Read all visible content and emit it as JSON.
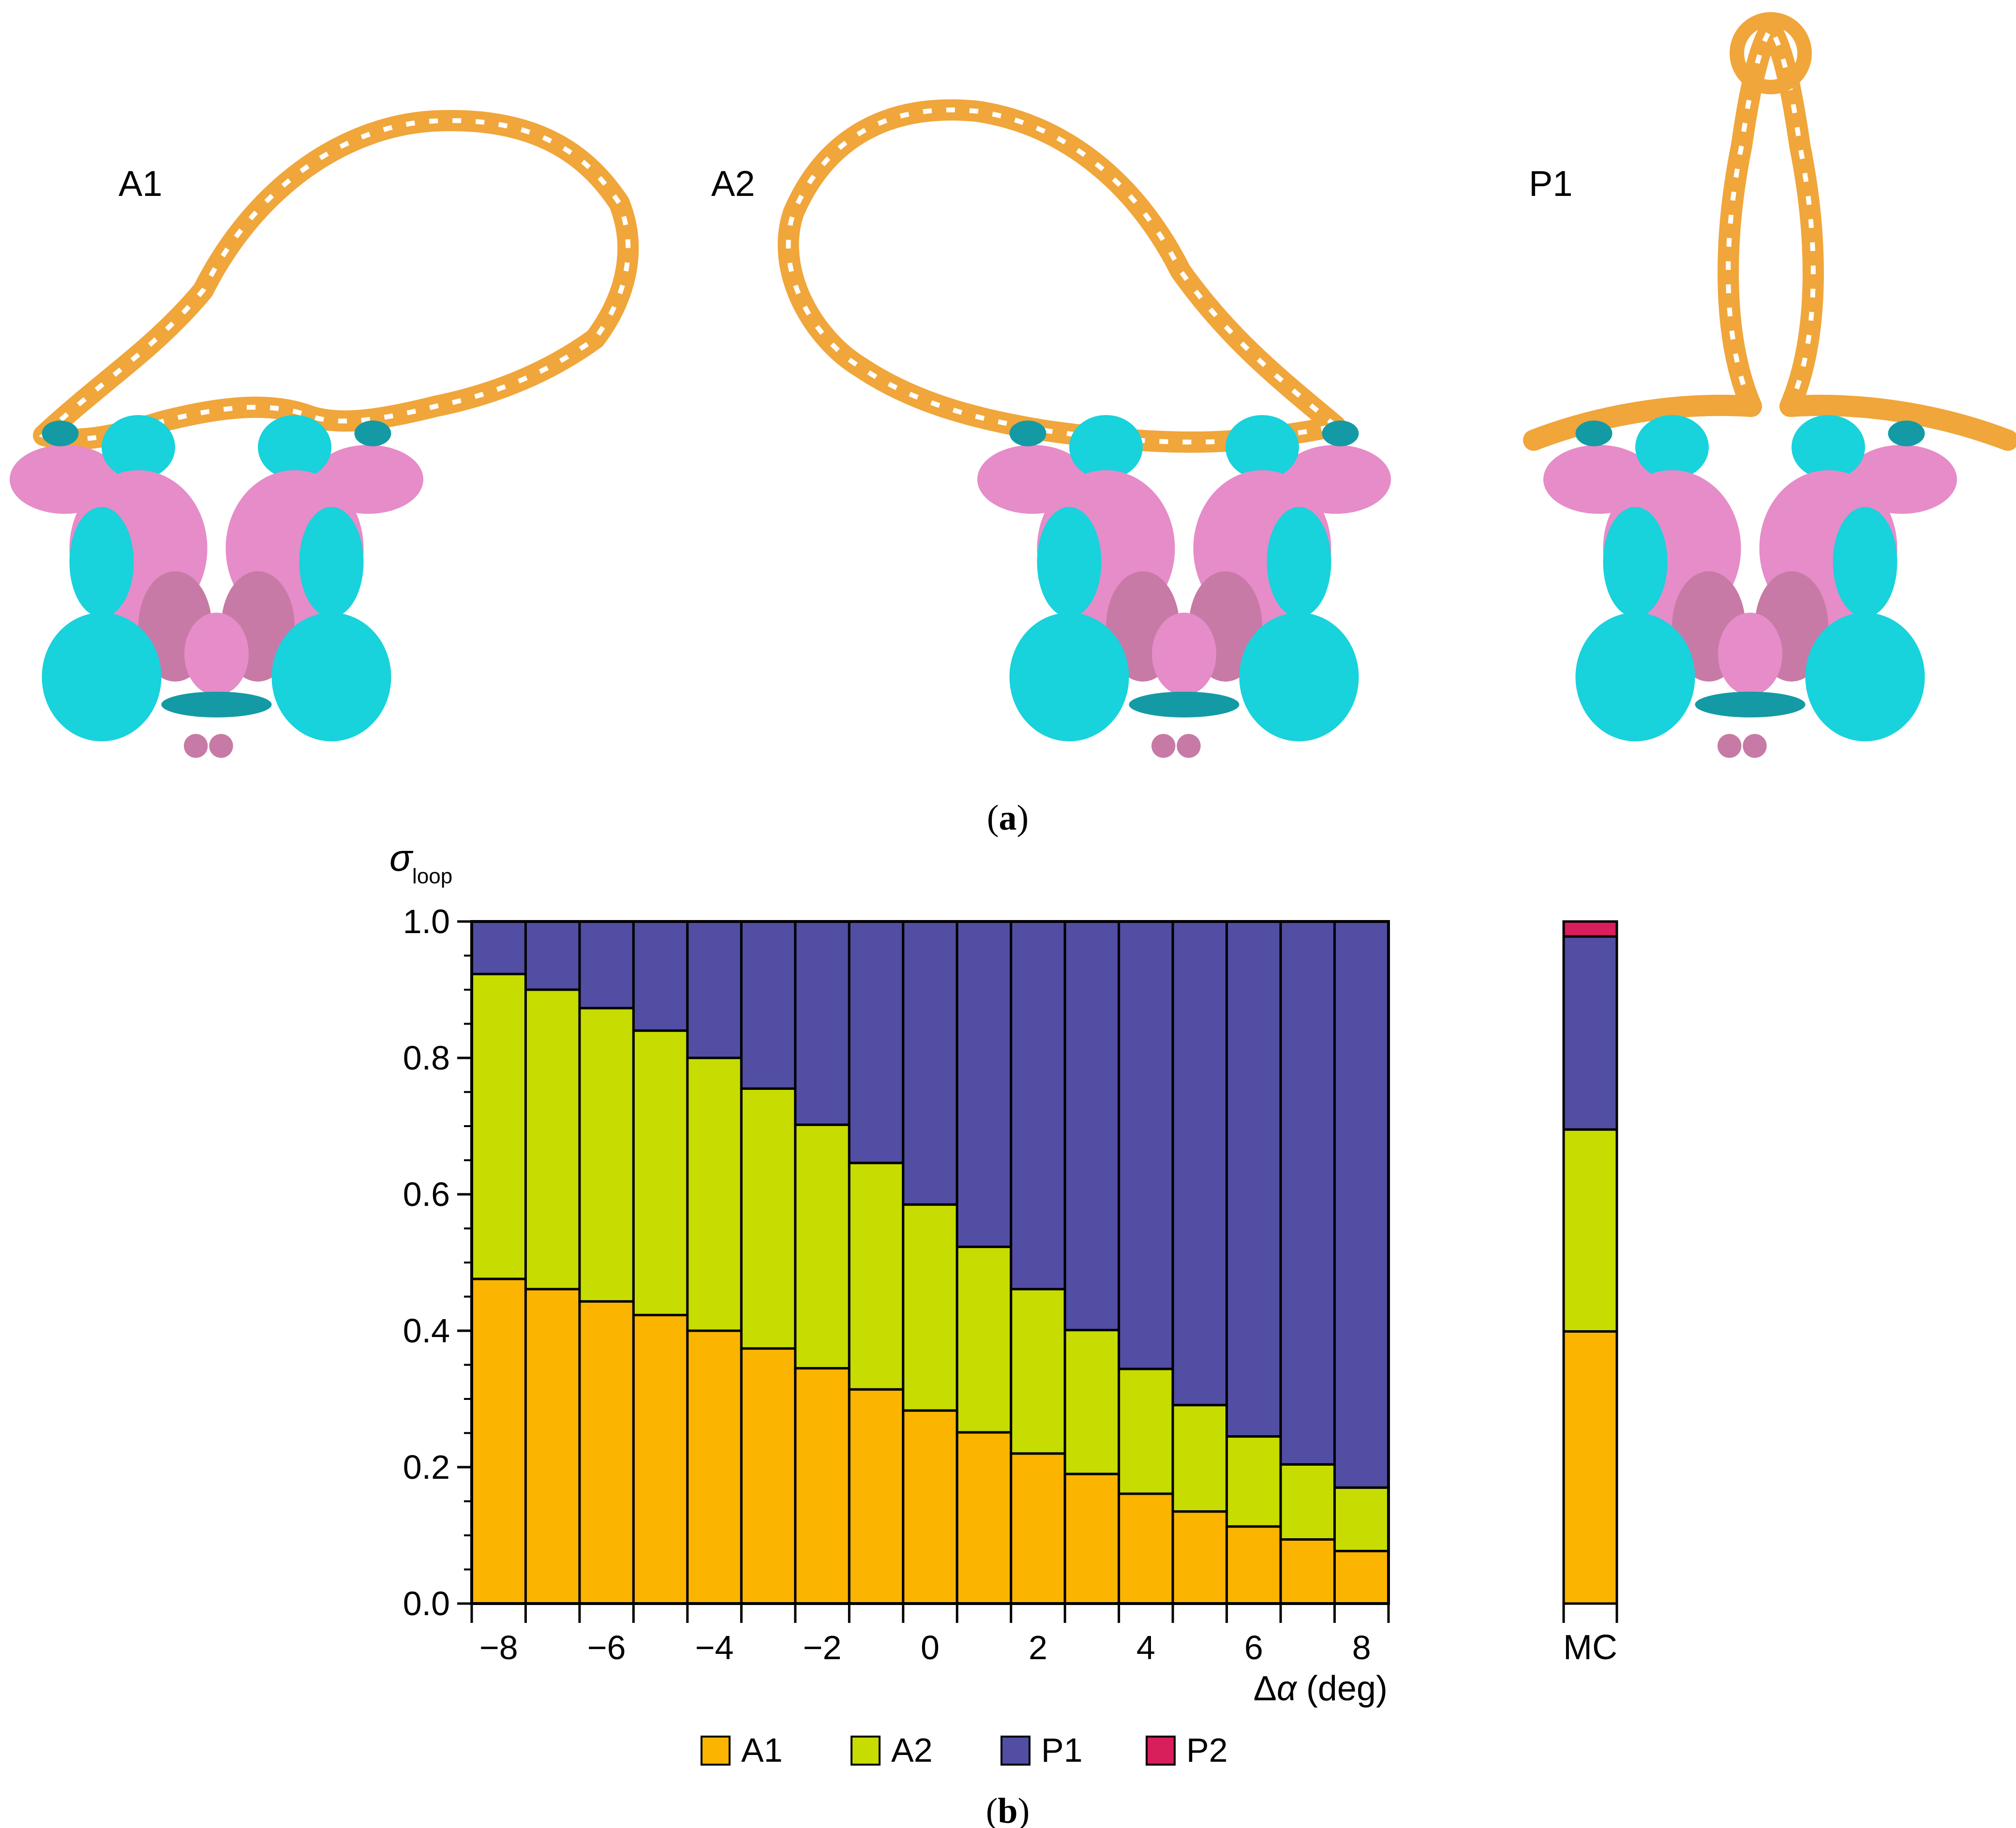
{
  "panel_a": {
    "caption_letter": "a",
    "structures": [
      {
        "label": "A1"
      },
      {
        "label": "A2"
      },
      {
        "label": "P1"
      }
    ],
    "colors": {
      "dna": "#f0a63a",
      "protein_pink": "#e68cc8",
      "protein_cyan": "#18d2dc",
      "protein_teal": "#139aa5",
      "protein_mauve": "#c77aa6"
    }
  },
  "panel_b": {
    "caption_letter": "b",
    "ylabel_symbol": "σ",
    "ylabel_subscript": "loop",
    "xlabel_symbol_prefix": "Δ",
    "xlabel_symbol": "α",
    "xlabel_unit": " (deg)",
    "mc_label": "MC"
  },
  "chart_data": {
    "type": "bar",
    "stacked": true,
    "x": [
      -8,
      -7,
      -6,
      -5,
      -4,
      -3,
      -2,
      -1,
      0,
      1,
      2,
      3,
      4,
      5,
      6,
      7,
      8
    ],
    "xticks": [
      -8,
      -6,
      -4,
      -2,
      0,
      2,
      4,
      6,
      8
    ],
    "xtick_labels": [
      "−8",
      "−6",
      "−4",
      "−2",
      "0",
      "2",
      "4",
      "6",
      "8"
    ],
    "ylim": [
      0,
      1
    ],
    "yticks": [
      0,
      0.2,
      0.4,
      0.6,
      0.8,
      1.0
    ],
    "ytick_labels": [
      "0.0",
      "0.2",
      "0.4",
      "0.6",
      "0.8",
      "1.0"
    ],
    "grid": false,
    "legend_position": "bottom-center",
    "series": [
      {
        "name": "A1",
        "color": "#fbb400",
        "values": [
          0.476,
          0.461,
          0.443,
          0.423,
          0.4,
          0.374,
          0.345,
          0.314,
          0.283,
          0.251,
          0.22,
          0.19,
          0.161,
          0.135,
          0.113,
          0.094,
          0.077
        ]
      },
      {
        "name": "A2",
        "color": "#c7dc00",
        "values": [
          0.447,
          0.439,
          0.43,
          0.417,
          0.4,
          0.381,
          0.357,
          0.332,
          0.302,
          0.272,
          0.241,
          0.211,
          0.183,
          0.156,
          0.132,
          0.11,
          0.093
        ]
      },
      {
        "name": "P1",
        "color": "#514ea3",
        "values": [
          0.077,
          0.1,
          0.127,
          0.16,
          0.2,
          0.245,
          0.298,
          0.354,
          0.415,
          0.477,
          0.539,
          0.599,
          0.656,
          0.709,
          0.755,
          0.796,
          0.83
        ]
      },
      {
        "name": "P2",
        "color": "#d81e5b",
        "values": [
          0,
          0,
          0,
          0,
          0,
          0,
          0,
          0,
          0,
          0,
          0,
          0,
          0,
          0,
          0,
          0,
          0
        ]
      }
    ],
    "mc": {
      "label": "MC",
      "values": {
        "A1": 0.399,
        "A2": 0.296,
        "P1": 0.283,
        "P2": 0.022
      }
    }
  }
}
